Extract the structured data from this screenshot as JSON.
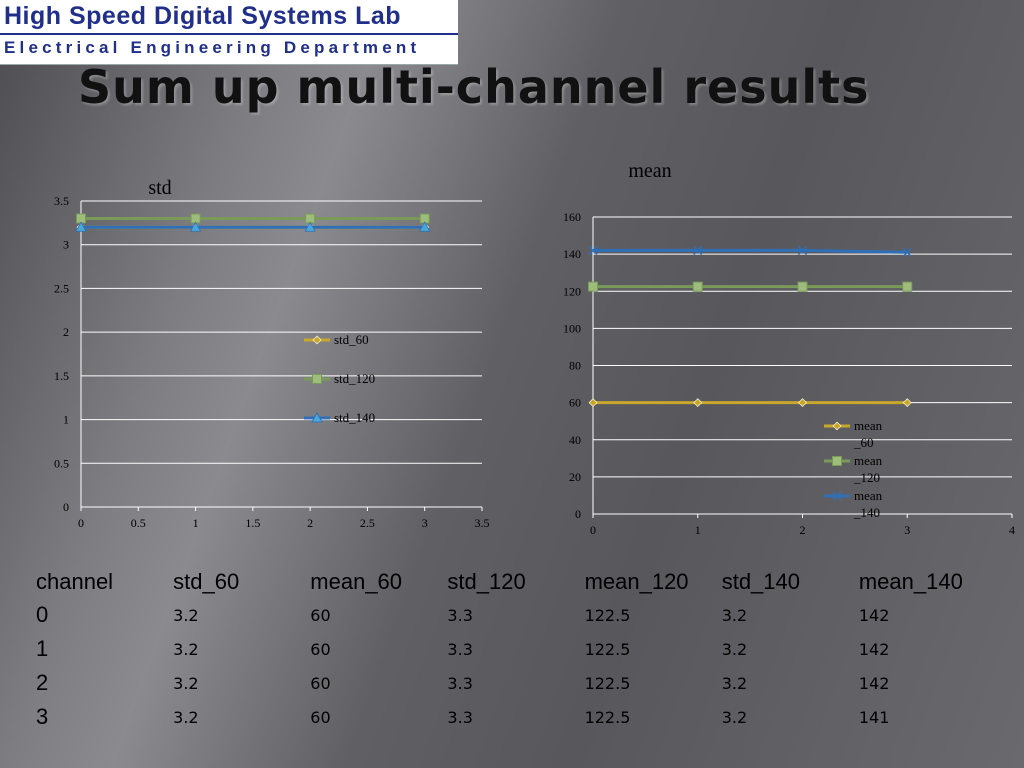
{
  "logo": {
    "line1": "High Speed Digital Systems Lab",
    "line2": "Electrical Engineering Department"
  },
  "slide": {
    "title": "Sum up multi-channel results"
  },
  "colors": {
    "series_60": "#c8a82a",
    "series_120": "#7a9a5a",
    "series_140": "#2f6fb8",
    "grid": "#ffffff",
    "axis": "#ffffff",
    "text": "#000000"
  },
  "chart_data": [
    {
      "type": "line",
      "title": "std",
      "xlabel": "",
      "ylabel": "",
      "xlim": [
        0,
        3.5
      ],
      "ylim": [
        0,
        3.5
      ],
      "x_ticks": [
        "0",
        "0.5",
        "1",
        "1.5",
        "2",
        "2.5",
        "3",
        "3.5"
      ],
      "y_ticks": [
        "0",
        "0.5",
        "1",
        "1.5",
        "2",
        "2.5",
        "3",
        "3.5"
      ],
      "grid": true,
      "legend_position": "center-right",
      "x": [
        0,
        1,
        2,
        3
      ],
      "series": [
        {
          "name": "std_60",
          "values": [
            3.2,
            3.2,
            3.2,
            3.2
          ],
          "marker": "diamond",
          "color": "#c8a82a"
        },
        {
          "name": "std_120",
          "values": [
            3.3,
            3.3,
            3.3,
            3.3
          ],
          "marker": "square",
          "color": "#7a9a5a"
        },
        {
          "name": "std_140",
          "values": [
            3.2,
            3.2,
            3.2,
            3.2
          ],
          "marker": "triangle",
          "color": "#2f6fb8"
        }
      ]
    },
    {
      "type": "line",
      "title": "mean",
      "xlabel": "",
      "ylabel": "",
      "xlim": [
        0,
        4
      ],
      "ylim": [
        0,
        160
      ],
      "x_ticks": [
        "0",
        "1",
        "2",
        "3",
        "4"
      ],
      "y_ticks": [
        "0",
        "20",
        "40",
        "60",
        "80",
        "100",
        "120",
        "140",
        "160"
      ],
      "grid": true,
      "legend_position": "bottom-right",
      "x": [
        0,
        1,
        2,
        3
      ],
      "series": [
        {
          "name": "mean_60",
          "values": [
            60,
            60,
            60,
            60
          ],
          "marker": "diamond",
          "color": "#c8a82a",
          "legend_lines": [
            "mean",
            "_60"
          ]
        },
        {
          "name": "mean_120",
          "values": [
            122.5,
            122.5,
            122.5,
            122.5
          ],
          "marker": "square",
          "color": "#7a9a5a",
          "legend_lines": [
            "mean",
            "_120"
          ]
        },
        {
          "name": "mean_140",
          "values": [
            142,
            142,
            142,
            141
          ],
          "marker": "x",
          "color": "#2f6fb8",
          "legend_lines": [
            "mean",
            "_140"
          ]
        }
      ]
    }
  ],
  "table": {
    "headers": [
      "channel",
      "std_60",
      "mean_60",
      "std_120",
      "mean_120",
      "std_140",
      "mean_140"
    ],
    "rows": [
      [
        "0",
        "3.2",
        "60",
        "3.3",
        "122.5",
        "3.2",
        "142"
      ],
      [
        "1",
        "3.2",
        "60",
        "3.3",
        "122.5",
        "3.2",
        "142"
      ],
      [
        "2",
        "3.2",
        "60",
        "3.3",
        "122.5",
        "3.2",
        "142"
      ],
      [
        "3",
        "3.2",
        "60",
        "3.3",
        "122.5",
        "3.2",
        "141"
      ]
    ]
  }
}
